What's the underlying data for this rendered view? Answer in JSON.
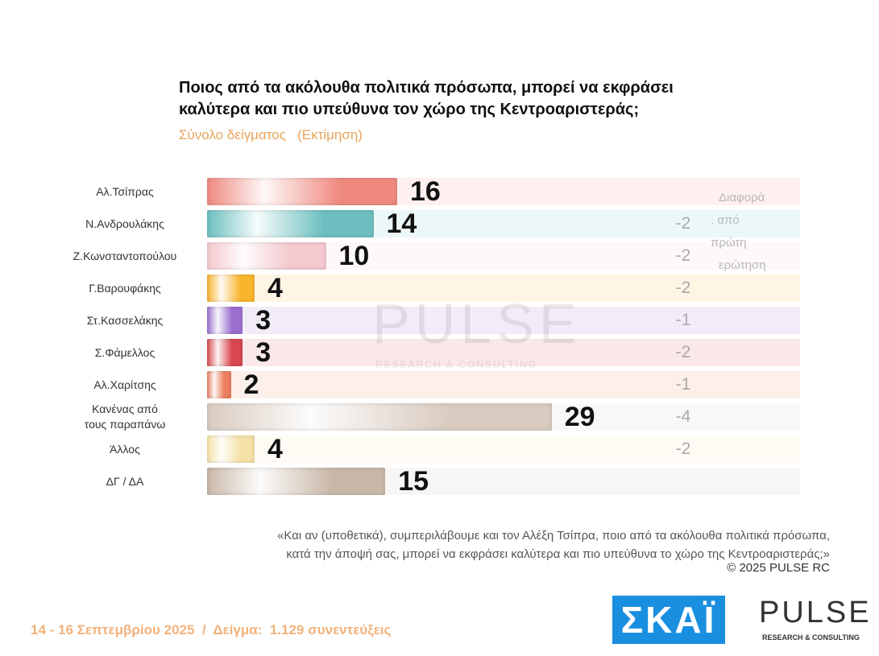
{
  "chart_data": {
    "type": "bar",
    "title": [
      "Ποιος από τα ακόλουθα πολιτικά πρόσωπα, μπορεί να εκφράσει",
      "καλύτερα και πιο υπεύθυνα τον χώρο της Κεντροαριστεράς;"
    ],
    "subtitle": [
      "Σύνολο δείγματος",
      "(Εκτίμηση)"
    ],
    "categories": [
      "Αλ.Τσίπρας",
      "Ν.Ανδρουλάκης",
      "Ζ.Κωνσταντοπούλου",
      "Γ.Βαρουφάκης",
      "Στ.Κασσελάκης",
      "Σ.Φάμελλος",
      "Αλ.Χαρίτσης",
      "Κανένας από\nτους παραπάνω",
      "Άλλος",
      "ΔΓ / ΔΑ"
    ],
    "values": [
      16,
      14,
      10,
      4,
      3,
      3,
      2,
      29,
      4,
      15
    ],
    "colors": [
      "#f08a80",
      "#6dbfbf",
      "#f4c9cf",
      "#f9b52e",
      "#9b6fd0",
      "#d9474f",
      "#ec8060",
      "#d9cbc0",
      "#f5e2a8",
      "#c9b8a8"
    ],
    "changes": [
      null,
      -2,
      -2,
      -2,
      -1,
      -2,
      -1,
      -4,
      -2,
      null
    ],
    "changes_header": [
      "Διαφορά",
      ". από",
      "πρώτη",
      "ερώτηση"
    ],
    "footnote": [
      "«Και αν (υποθετικά), συμπεριλάβουμε και τον Αλέξη Τσίπρα, ποιο από τα ακόλουθα πολιτικά πρόσωπα,",
      "κατά την άποψή σας, μπορεί να εκφράσει καλύτερα και πιο υπεύθυνα το χώρο της Κεντροαριστεράς;»"
    ],
    "copyright": "©  2025  PULSE RC"
  },
  "footer": {
    "fieldwork": "14 - 16 Σεπτεμβρίου 2025  /  Δείγμα:  1.129 συνεντεύξεις",
    "skai_logo": "ΣΚΑΪ",
    "pulse_logo": "PULSE",
    "pulse_tagline": "RESEARCH & CONSULTING"
  },
  "watermark": {
    "name": "PULSE",
    "tagline": "RESEARCH & CONSULTING"
  }
}
